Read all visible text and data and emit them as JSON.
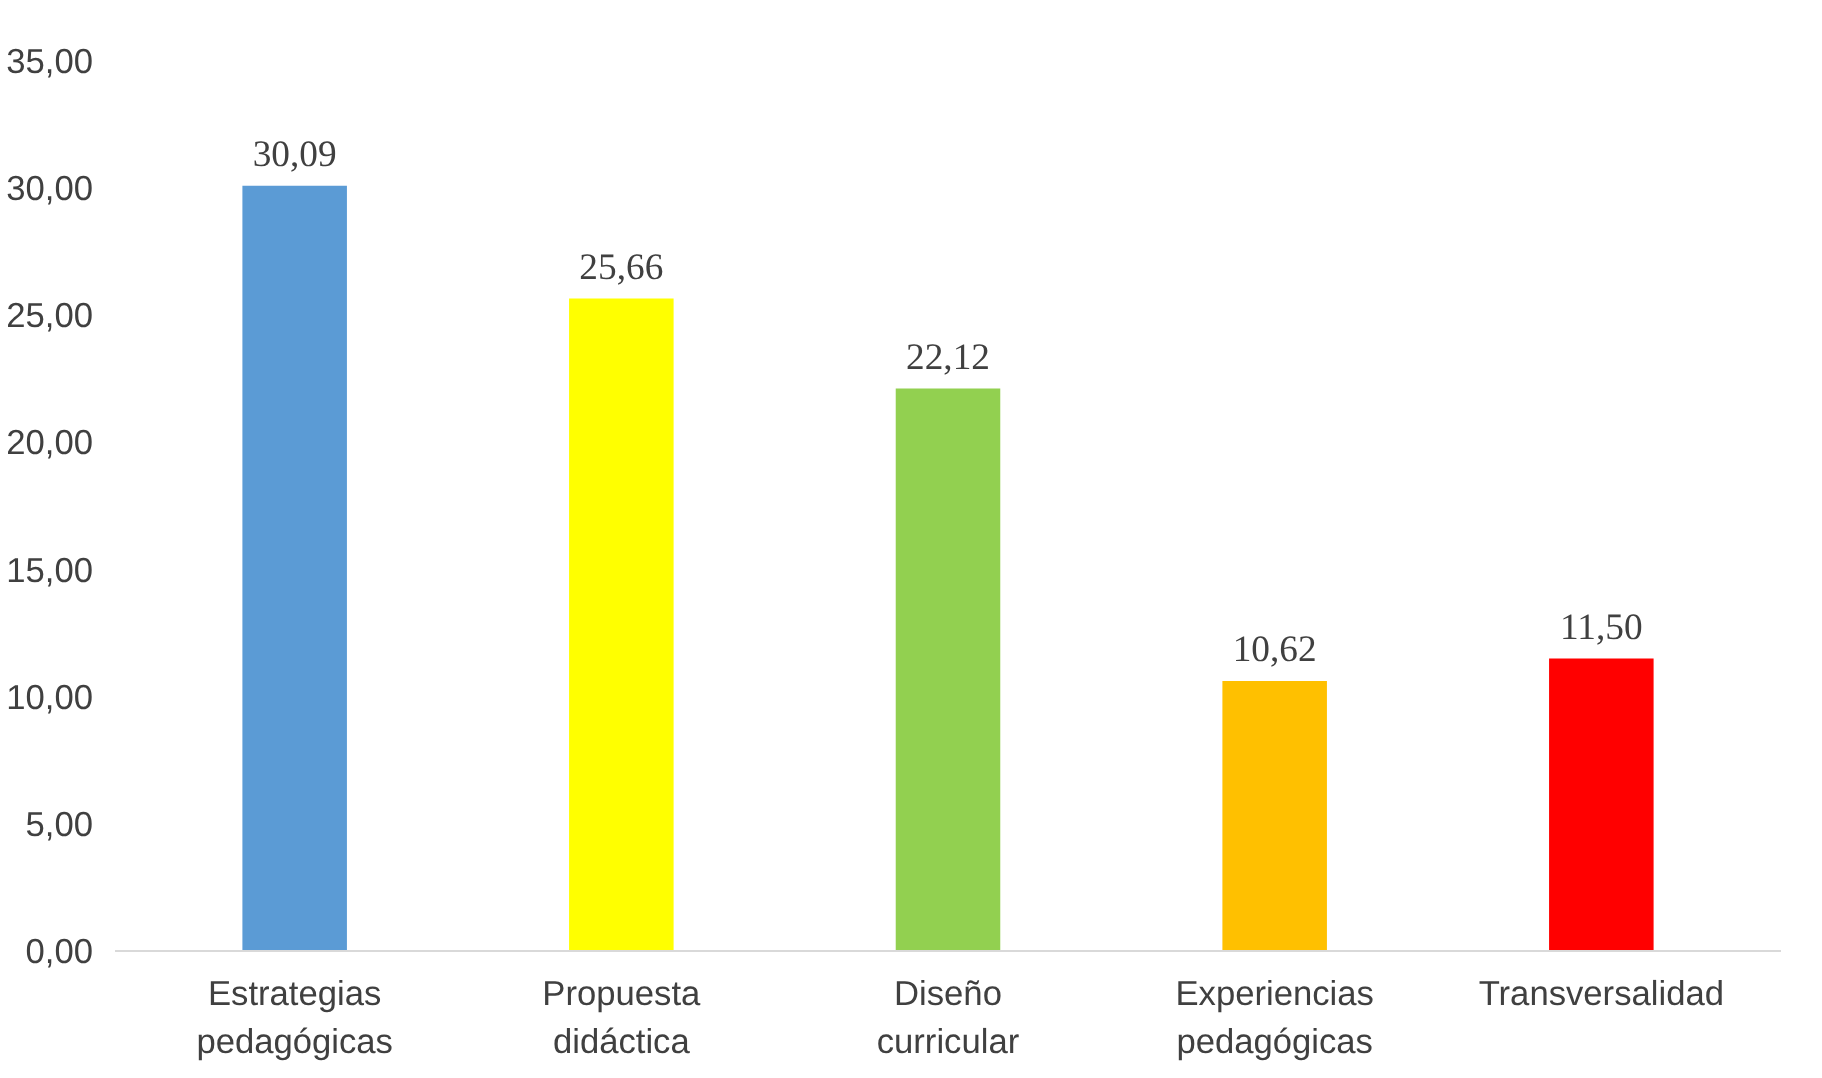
{
  "chart_data": {
    "type": "bar",
    "categories": [
      "Estrategias pedagógicas",
      "Propuesta didáctica",
      "Diseño curricular",
      "Experiencias pedagógicas",
      "Transversalidad"
    ],
    "values": [
      30.09,
      25.66,
      22.12,
      10.62,
      11.5
    ],
    "colors": [
      "#5b9bd5",
      "#ffff00",
      "#92d050",
      "#ffc000",
      "#ff0000"
    ],
    "value_labels": [
      "30,09",
      "25,66",
      "22,12",
      "10,62",
      "11,50"
    ],
    "ylim": [
      0,
      35
    ],
    "yticks": [
      {
        "value": 0,
        "label": "0,00"
      },
      {
        "value": 5,
        "label": "5,00"
      },
      {
        "value": 10,
        "label": "10,00"
      },
      {
        "value": 15,
        "label": "15,00"
      },
      {
        "value": 20,
        "label": "20,00"
      },
      {
        "value": 25,
        "label": "25,00"
      },
      {
        "value": 30,
        "label": "30,00"
      },
      {
        "value": 35,
        "label": "35,00"
      }
    ],
    "grid": false
  }
}
